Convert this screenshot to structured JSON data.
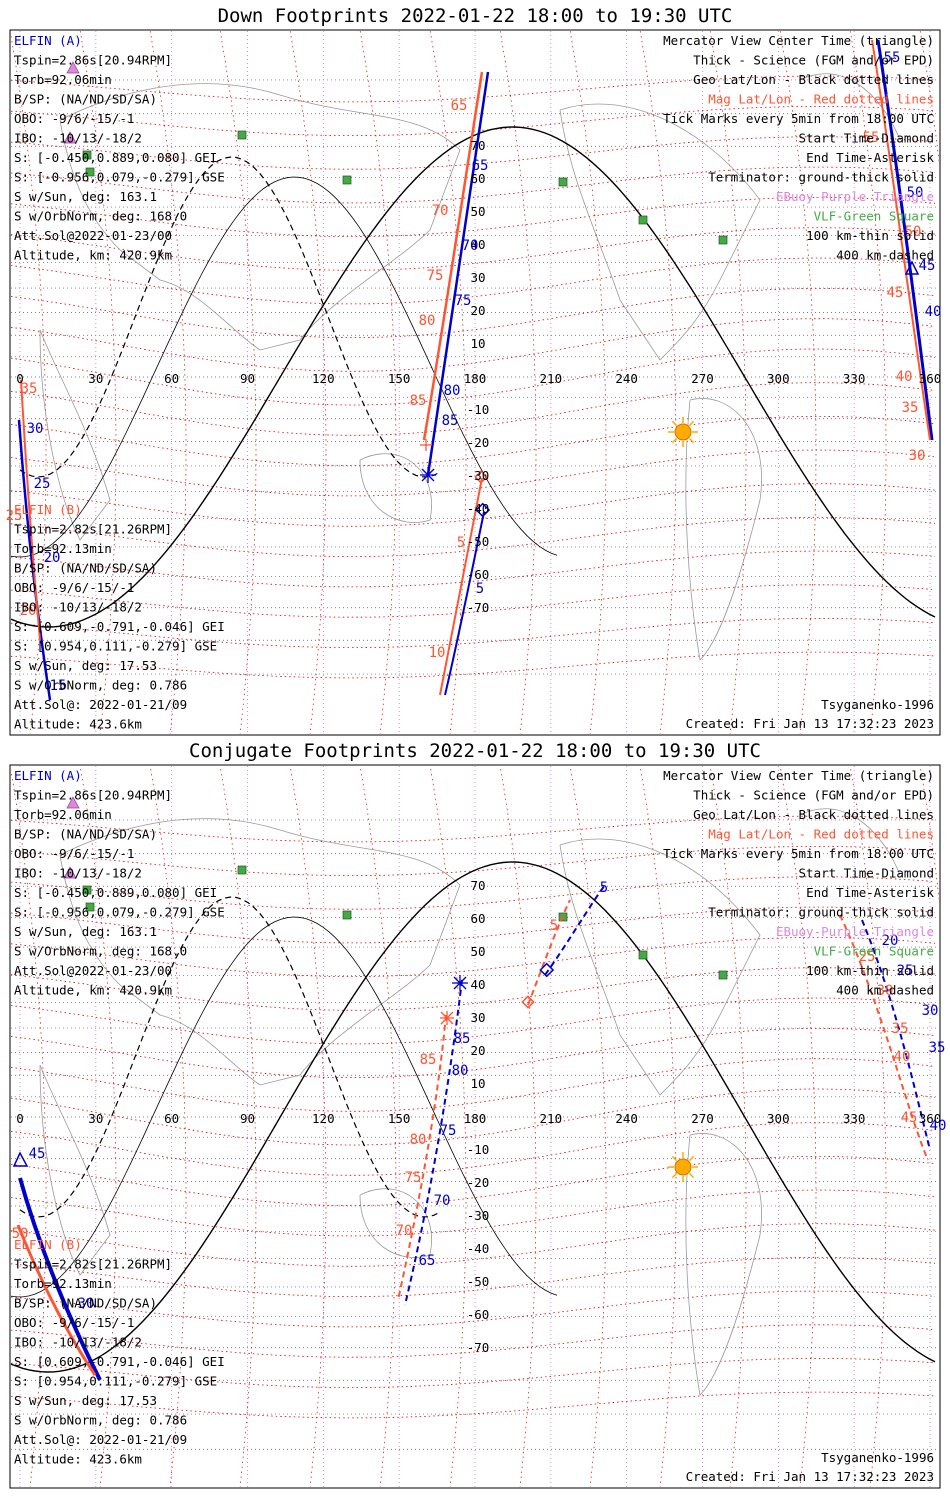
{
  "colors": {
    "elfin_a": "#0000cc",
    "elfin_b": "#ff5533",
    "mag_grid": "#dd0000",
    "geo_grid": "#444444",
    "ebuoy": "#dd88dd",
    "vlf": "#44aa44",
    "sun": "#ffaa00"
  },
  "panels": [
    {
      "id": "down",
      "title": "Down Footprints 2022-01-22 18:00 to 19:30 UTC",
      "mode": "down",
      "legend": [
        {
          "text": "Mercator View Center Time (triangle)",
          "color": "k"
        },
        {
          "text": "Thick - Science (FGM and/or EPD)",
          "color": "k"
        },
        {
          "text": "Geo Lat/Lon - Black dotted lines",
          "color": "k"
        },
        {
          "text": "Mag Lat/Lon - Red dotted lines",
          "color": "o"
        },
        {
          "text": "Tick Marks every 5min from 18:00 UTC",
          "color": "k"
        },
        {
          "text": "Start Time-Diamond",
          "color": "k"
        },
        {
          "text": "End Time-Asterisk",
          "color": "k"
        },
        {
          "text": "Terminator: ground-thick solid",
          "color": "k"
        },
        {
          "text": "EBuoy-Purple Triangle",
          "color": "m"
        },
        {
          "text": "VLF-Green Square",
          "color": "g"
        },
        {
          "text": "100 km-thin solid",
          "color": "k"
        },
        {
          "text": "400 km-dashed",
          "color": "k"
        }
      ],
      "credit": "Tsyganenko-1996",
      "created": "Created: Fri Jan 13 17:32:23 2023"
    },
    {
      "id": "conj",
      "title": "Conjugate Footprints 2022-01-22 18:00 to 19:30 UTC",
      "mode": "conj",
      "legend": [
        {
          "text": "Mercator View Center Time (triangle)",
          "color": "k"
        },
        {
          "text": "Thick - Science (FGM and/or EPD)",
          "color": "k"
        },
        {
          "text": "Geo Lat/Lon - Black dotted lines",
          "color": "k"
        },
        {
          "text": "Mag Lat/Lon - Red dotted lines",
          "color": "o"
        },
        {
          "text": "Tick Marks every 5min from 18:00 UTC",
          "color": "k"
        },
        {
          "text": "Start Time-Diamond",
          "color": "k"
        },
        {
          "text": "End Time-Asterisk",
          "color": "k"
        },
        {
          "text": "Terminator: ground-thick solid",
          "color": "k"
        },
        {
          "text": "EBuoy-Purple Triangle",
          "color": "m"
        },
        {
          "text": "VLF-Green Square",
          "color": "g"
        },
        {
          "text": "100 km-thin solid",
          "color": "k"
        },
        {
          "text": "400 km-dashed",
          "color": "k"
        }
      ],
      "credit": "Tsyganenko-1996",
      "created": "Created: Fri Jan 13 17:32:23 2023"
    }
  ],
  "elfin_a": {
    "name": "ELFIN (A)",
    "lines": [
      "Tspin=2.86s[20.94RPM]",
      "Torb=92.06min",
      "B/SP: (NA/ND/SD/SA)",
      "OBO: -9/6/-15/-1",
      "IBO: -10/13/-18/2",
      "S: [-0.450,0.889,0.080] GEI",
      "S: [-0.956,0.079,-0.279] GSE",
      "S w/Sun, deg: 163.1",
      "S w/OrbNorm, deg: 168.0",
      "Att.Sol@2022-01-23/00",
      "Altitude, km: 420.9km"
    ]
  },
  "elfin_b": {
    "name": "ELFIN (B)",
    "lines": [
      "Tspin=2.82s[21.26RPM]",
      "Torb=92.13min",
      "B/SP: (NA/ND/SD/SA)",
      "OBO: -9/6/-15/-1",
      "IBO: -10/13/-18/2",
      "S: [0.609,-0.791,-0.046] GEI",
      "S: [0.954,0.111,-0.279] GSE",
      "S w/Sun, deg: 17.53",
      "S w/OrbNorm, deg: 0.786",
      "Att.Sol@: 2022-01-21/09",
      "Altitude: 423.6km"
    ]
  },
  "lon_ticks": [
    "0",
    "30",
    "60",
    "90",
    "120",
    "150",
    "180",
    "210",
    "240",
    "270",
    "300",
    "330",
    "360"
  ],
  "lat_ticks": [
    "70",
    "60",
    "50",
    "40",
    "30",
    "20",
    "10",
    "0",
    "-10",
    "-20",
    "-30",
    "-40",
    "-50",
    "-60",
    "-70"
  ],
  "down_markers": {
    "a_south": [
      "65",
      "70",
      "75",
      "80",
      "85"
    ],
    "a_south_tail": [
      "5"
    ],
    "b_south": [
      "65",
      "70",
      "75",
      "80",
      "85"
    ],
    "b_south_tail": [
      "5",
      "10"
    ],
    "a_edge": [
      "30",
      "25",
      "20",
      "15"
    ],
    "b_edge": [
      "35",
      "25",
      "20"
    ],
    "a_right": [
      "55",
      "50",
      "45",
      "40"
    ],
    "b_right": [
      "55",
      "50",
      "45",
      "40",
      "35",
      "30"
    ]
  },
  "conj_markers": {
    "a_mid": [
      "85",
      "80",
      "75",
      "70",
      "65"
    ],
    "b_mid": [
      "85",
      "80",
      "75",
      "70"
    ],
    "a_top": [
      "5"
    ],
    "b_top": [
      "5"
    ],
    "a_right": [
      "20",
      "25",
      "30",
      "35",
      "40"
    ],
    "b_right": [
      "25",
      "30",
      "35",
      "40",
      "45"
    ],
    "a_left": [
      "45",
      "30"
    ],
    "b_left": [
      "50"
    ]
  }
}
